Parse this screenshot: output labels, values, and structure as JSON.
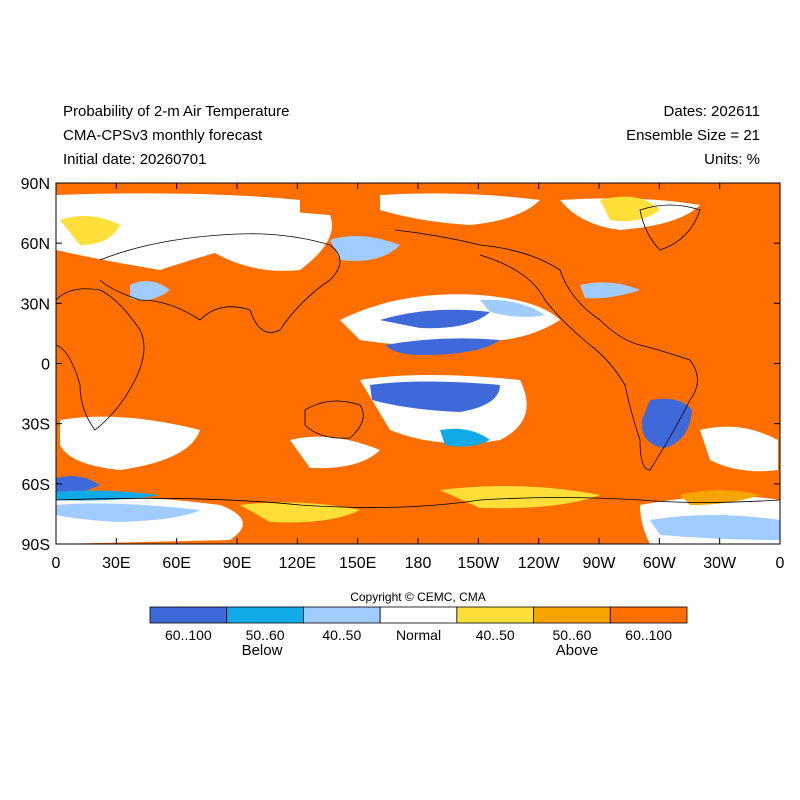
{
  "header": {
    "title_left": [
      "Probability of 2-m Air Temperature",
      "CMA-CPSv3 monthly forecast",
      "Initial date: 20260701"
    ],
    "title_right": [
      "Dates: 202611",
      "Ensemble Size = 21",
      "Units: %"
    ]
  },
  "map": {
    "lat_labels": [
      "90N",
      "60N",
      "30N",
      "0",
      "30S",
      "60S",
      "90S"
    ],
    "lon_labels": [
      "0",
      "30E",
      "60E",
      "90E",
      "120E",
      "150E",
      "180",
      "150W",
      "120W",
      "90W",
      "60W",
      "30W",
      "0"
    ]
  },
  "copyright": "Copyright © CEMC, CMA",
  "legend": {
    "items": [
      {
        "label": "60..100",
        "color": "#3f68d8"
      },
      {
        "label": "50..60",
        "color": "#10aae8"
      },
      {
        "label": "40..50",
        "color": "#a0ccff"
      },
      {
        "label": "Normal",
        "color": "#ffffff"
      },
      {
        "label": "40..50",
        "color": "#ffdf38"
      },
      {
        "label": "50..60",
        "color": "#f8a400"
      },
      {
        "label": "60..100",
        "color": "#ff6f00"
      }
    ],
    "below": "Below",
    "above": "Above"
  }
}
